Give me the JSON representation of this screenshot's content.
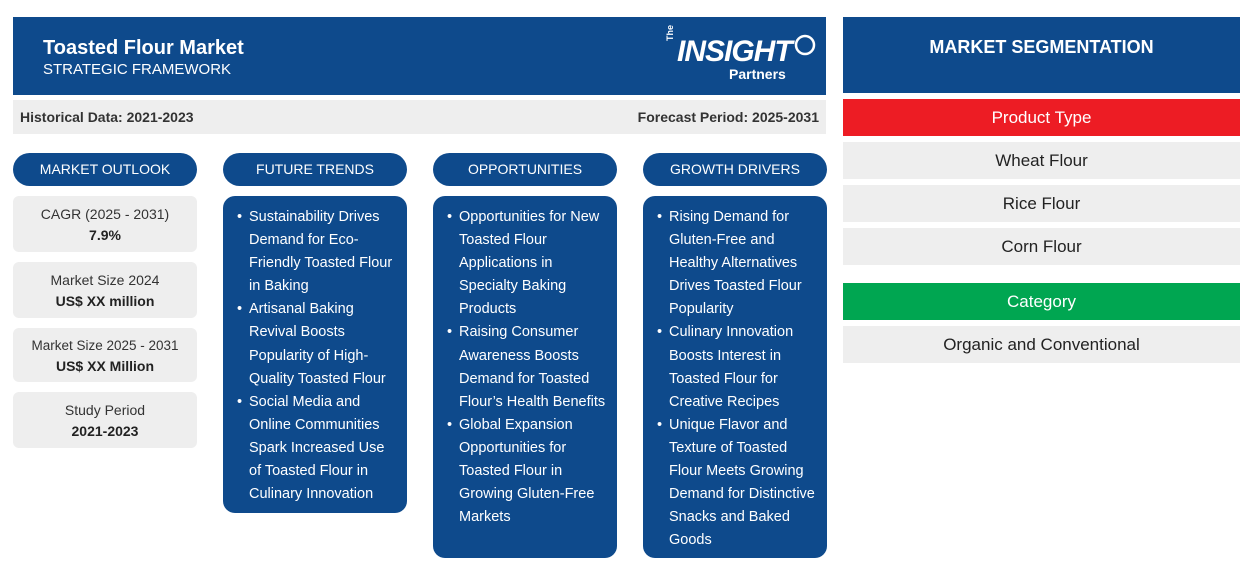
{
  "header": {
    "title": "Toasted Flour Market",
    "subtitle": "STRATEGIC FRAMEWORK",
    "logo": {
      "the": "The",
      "word": "INSIGHT",
      "partners": "Partners"
    }
  },
  "subbar": {
    "historical": "Historical Data: 2021-2023",
    "forecast": "Forecast Period: 2025-2031"
  },
  "outlook": {
    "heading": "MARKET OUTLOOK",
    "items": [
      {
        "label": "CAGR (2025 - 2031)",
        "value": "7.9%"
      },
      {
        "label": "Market Size 2024",
        "value": "US$ XX million"
      },
      {
        "label": "Market Size 2025 - 2031",
        "value": "US$ XX Million"
      },
      {
        "label": "Study Period",
        "value": "2021-2023"
      }
    ]
  },
  "future_trends": {
    "heading": "FUTURE TRENDS",
    "items": [
      "Sustainability Drives Demand for Eco-Friendly Toasted Flour in Baking",
      "Artisanal Baking Revival Boosts Popularity of High-Quality Toasted Flour",
      "Social Media and Online Communities Spark Increased Use of Toasted Flour in Culinary Innovation"
    ]
  },
  "opportunities": {
    "heading": "OPPORTUNITIES",
    "items": [
      "Opportunities for New Toasted Flour Applications in Specialty Baking Products",
      "Raising Consumer Awareness Boosts Demand for Toasted Flour’s Health Benefits",
      "Global Expansion Opportunities for Toasted Flour in Growing Gluten-Free Markets"
    ]
  },
  "growth_drivers": {
    "heading": "GROWTH DRIVERS",
    "items": [
      "Rising Demand for Gluten-Free and Healthy Alternatives Drives Toasted Flour Popularity",
      "Culinary Innovation Boosts Interest in Toasted Flour for Creative Recipes",
      "Unique Flavor and Texture of Toasted Flour Meets Growing Demand for Distinctive Snacks and Baked Goods"
    ]
  },
  "segmentation": {
    "heading": "MARKET SEGMENTATION",
    "product_type": {
      "label": "Product Type",
      "color": "#ed1c24",
      "items": [
        "Wheat Flour",
        "Rice Flour",
        "Corn Flour"
      ]
    },
    "category": {
      "label": "Category",
      "color": "#00a651",
      "items": [
        "Organic and Conventional"
      ]
    }
  },
  "colors": {
    "primary": "#0e4a8c",
    "panel": "#eeeeee"
  }
}
